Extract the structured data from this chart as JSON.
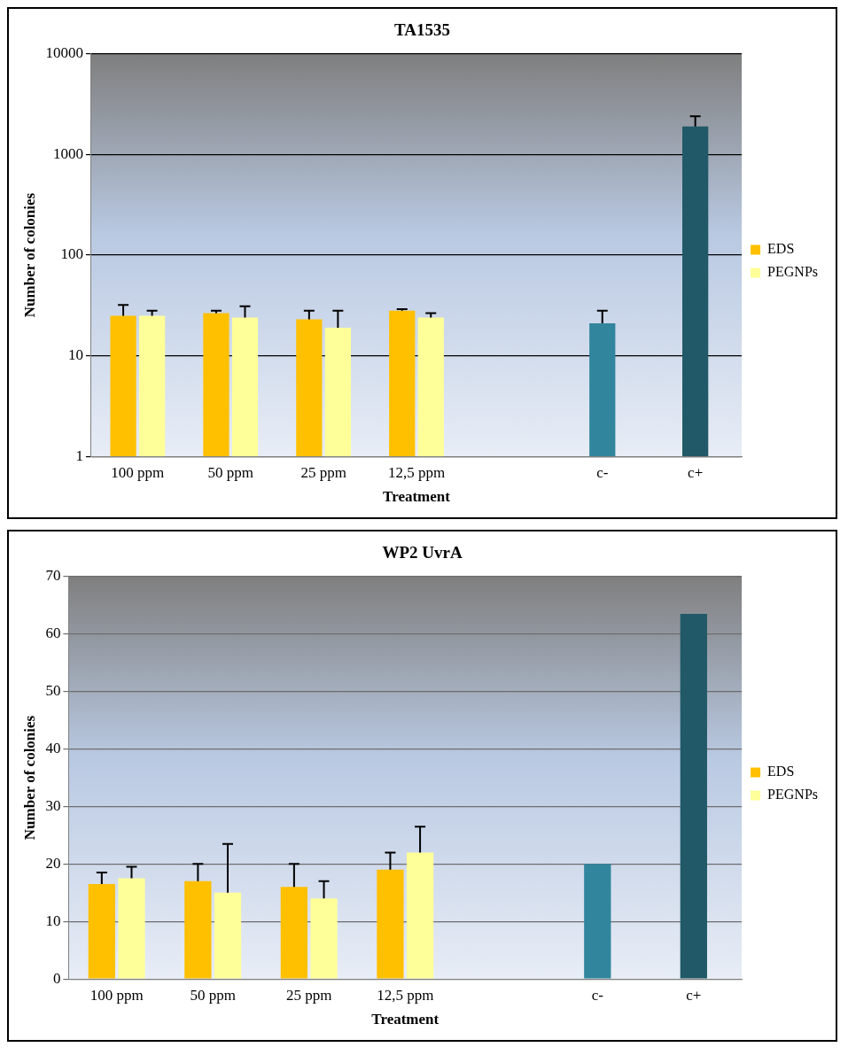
{
  "chart_data": [
    {
      "type": "bar",
      "title": "TA1535",
      "xlabel": "Treatment",
      "ylabel": "Number of colonies",
      "categories": [
        "100 ppm",
        "50 ppm",
        "25 ppm",
        "12,5 ppm",
        null,
        "c-",
        "c+"
      ],
      "series": [
        {
          "name": "EDS",
          "color": "#ffc000",
          "values": [
            25,
            26.5,
            23,
            28,
            null,
            null,
            null
          ],
          "errors": [
            7,
            1.5,
            5,
            1,
            null,
            null,
            null
          ]
        },
        {
          "name": "PEGNPs",
          "color": "#ffff99",
          "values": [
            25,
            24,
            19,
            24,
            null,
            null,
            null
          ],
          "errors": [
            3,
            7,
            9,
            2.5,
            null,
            null,
            null
          ]
        },
        {
          "colors": [
            "#31859c",
            "#31859c",
            "#31859c",
            "#31859c",
            "#31859c",
            "#31859c",
            "#215968"
          ],
          "values": [
            null,
            null,
            null,
            null,
            null,
            21,
            1900
          ],
          "errors": [
            null,
            null,
            null,
            null,
            null,
            7,
            500
          ]
        }
      ],
      "ylim": [
        1,
        10000
      ],
      "yticks": [
        1,
        10,
        100,
        1000,
        10000
      ],
      "log": "y",
      "grid": "y",
      "legend": "right"
    },
    {
      "type": "bar",
      "title": "WP2 UvrA",
      "xlabel": "Treatment",
      "ylabel": "Number of colonies",
      "categories": [
        "100 ppm",
        "50 ppm",
        "25 ppm",
        "12,5 ppm",
        null,
        "c-",
        "c+"
      ],
      "series": [
        {
          "name": "EDS",
          "color": "#ffc000",
          "values": [
            16.5,
            17,
            16,
            19,
            null,
            null,
            null
          ],
          "errors": [
            2,
            3,
            4,
            3,
            null,
            null,
            null
          ]
        },
        {
          "name": "PEGNPs",
          "color": "#ffff99",
          "values": [
            17.5,
            15,
            14,
            22,
            null,
            null,
            null
          ],
          "errors": [
            2,
            8.5,
            3,
            4.5,
            null,
            null,
            null
          ]
        },
        {
          "colors": [
            "#31859c",
            "#31859c",
            "#31859c",
            "#31859c",
            "#31859c",
            "#31859c",
            "#215968"
          ],
          "values": [
            null,
            null,
            null,
            null,
            null,
            20,
            63.5
          ]
        }
      ],
      "ylim": [
        0,
        70
      ],
      "yticks": [
        0,
        10,
        20,
        30,
        40,
        50,
        60,
        70
      ],
      "grid": "y",
      "legend": "right"
    }
  ]
}
